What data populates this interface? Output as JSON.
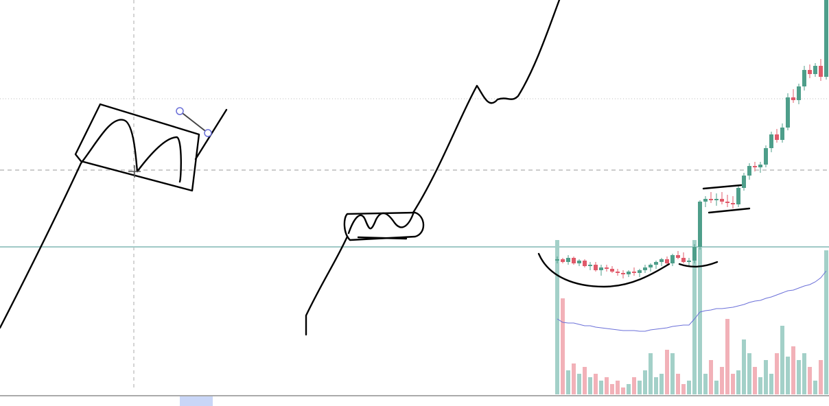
{
  "chart_data": {
    "type": "candlestick",
    "ylim": [
      0,
      592
    ],
    "volume_ylim": [
      0,
      592
    ],
    "up_color": "#4e9e8a",
    "down_color": "#e05a6a",
    "volume_up_color": "#a3d0c8",
    "volume_down_color": "#f2b1b8",
    "ma_color": "#6a6fd8",
    "open": [
      212,
      214,
      210,
      216,
      208,
      212,
      204,
      206,
      198,
      202,
      200,
      196,
      194,
      192,
      196,
      194,
      198,
      202,
      206,
      210,
      214,
      208,
      220,
      216,
      210,
      212,
      232,
      298,
      302,
      300,
      302,
      298,
      296,
      294,
      318,
      336,
      350,
      348,
      352,
      376,
      396,
      388,
      406,
      450,
      446,
      466,
      490,
      484,
      496,
      480
    ],
    "high": [
      218,
      216,
      220,
      218,
      214,
      214,
      210,
      210,
      206,
      206,
      204,
      200,
      198,
      198,
      202,
      200,
      206,
      208,
      212,
      216,
      218,
      222,
      226,
      224,
      216,
      236,
      300,
      306,
      312,
      310,
      312,
      308,
      306,
      322,
      340,
      354,
      356,
      356,
      380,
      400,
      404,
      412,
      456,
      462,
      470,
      496,
      498,
      500,
      506,
      592
    ],
    "low": [
      208,
      208,
      206,
      206,
      204,
      202,
      198,
      196,
      190,
      196,
      194,
      190,
      186,
      188,
      190,
      188,
      194,
      196,
      200,
      204,
      206,
      204,
      214,
      208,
      204,
      208,
      228,
      290,
      296,
      292,
      294,
      290,
      288,
      290,
      314,
      330,
      342,
      340,
      348,
      370,
      384,
      384,
      402,
      442,
      440,
      460,
      478,
      480,
      474,
      476
    ],
    "close": [
      214,
      210,
      216,
      208,
      212,
      204,
      206,
      198,
      202,
      200,
      196,
      194,
      192,
      196,
      194,
      198,
      202,
      206,
      210,
      214,
      208,
      220,
      216,
      210,
      212,
      232,
      298,
      302,
      300,
      302,
      298,
      296,
      294,
      318,
      336,
      350,
      348,
      352,
      376,
      396,
      388,
      406,
      450,
      446,
      466,
      490,
      484,
      496,
      480,
      592
    ],
    "volume": [
      225,
      140,
      35,
      45,
      30,
      40,
      25,
      30,
      20,
      25,
      15,
      20,
      10,
      15,
      25,
      20,
      35,
      60,
      25,
      30,
      65,
      60,
      30,
      15,
      20,
      225,
      225,
      30,
      50,
      20,
      40,
      110,
      30,
      35,
      80,
      60,
      40,
      25,
      50,
      30,
      60,
      100,
      55,
      70,
      50,
      60,
      40,
      20,
      50,
      210
    ],
    "ma": [
      110,
      105,
      104,
      104,
      102,
      100,
      100,
      98,
      97,
      96,
      95,
      94,
      93,
      93,
      93,
      92,
      92,
      94,
      95,
      96,
      97,
      99,
      100,
      101,
      101,
      110,
      120,
      122,
      123,
      125,
      125,
      126,
      127,
      129,
      131,
      134,
      136,
      137,
      140,
      142,
      145,
      148,
      151,
      152,
      155,
      158,
      160,
      164,
      170,
      180
    ]
  }
}
